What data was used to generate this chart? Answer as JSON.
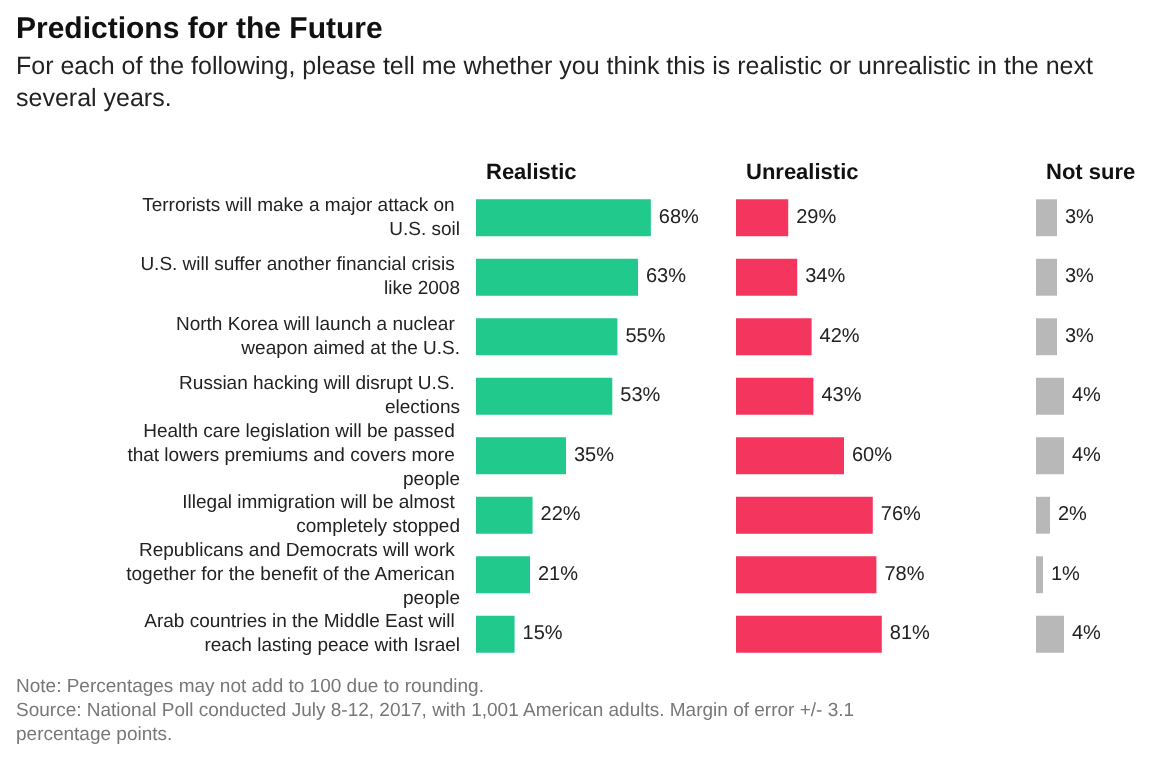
{
  "chart_data": [
    {
      "type": "bar",
      "orientation": "horizontal",
      "title": "Predictions for the Future",
      "subtitle": "For each of the following, please tell me whether you think this is realistic or unrealistic in the next several years.",
      "legend_title": "Realistic",
      "annotations": [
        "Note: Percentages may not add to 100 due to rounding.",
        "Source: National Poll conducted July 8-12, 2017, with 1,001 American adults. Margin of error +/- 3.1 percentage points."
      ],
      "categories": [
        "Terrorists will make a major attack on U.S. soil",
        "U.S. will suffer another financial crisis like 2008",
        "North Korea will launch a nuclear weapon aimed at the U.S.",
        "Russian hacking will disrupt U.S. elections",
        "Health care legislation will be passed that lowers premiums and covers more people",
        "Illegal immigration will be almost completely stopped",
        "Republicans and Democrats will work together for the benefit of the American people",
        "Arab countries in the Middle East will reach lasting peace with Israel"
      ],
      "values": [
        68,
        63,
        55,
        53,
        35,
        22,
        21,
        15
      ],
      "value_labels": [
        "68%",
        "63%",
        "55%",
        "53%",
        "35%",
        "22%",
        "21%",
        "15%"
      ],
      "color": "#22c98c",
      "tick_labels": "y",
      "grid": false
    },
    {
      "type": "bar",
      "orientation": "horizontal",
      "legend_title": "Unrealistic",
      "values": [
        29,
        34,
        42,
        43,
        60,
        76,
        78,
        81
      ],
      "value_labels": [
        "29%",
        "34%",
        "42%",
        "43%",
        "60%",
        "76%",
        "78%",
        "81%"
      ],
      "color": "#f4365f",
      "tick_labels": false,
      "grid": false
    },
    {
      "type": "bar",
      "orientation": "horizontal",
      "legend_title": "Not sure",
      "values": [
        3,
        3,
        3,
        4,
        4,
        2,
        1,
        4
      ],
      "value_labels": [
        "3%",
        "3%",
        "3%",
        "4%",
        "4%",
        "2%",
        "1%",
        "4%"
      ],
      "color": "#b8b8b8",
      "tick_labels": false,
      "grid": false
    }
  ]
}
